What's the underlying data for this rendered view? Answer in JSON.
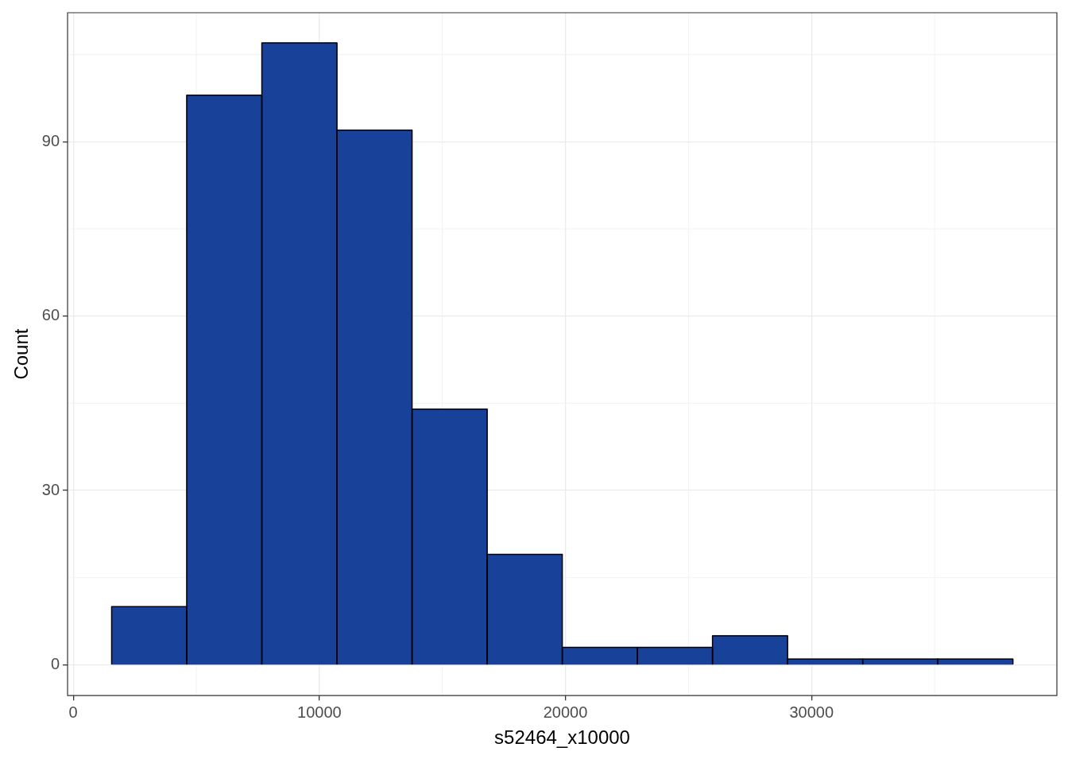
{
  "chart_data": {
    "type": "histogram",
    "xlabel": "s52464_x10000",
    "ylabel": "Count",
    "bins": [
      1560,
      4612,
      7664,
      10716,
      13768,
      16820,
      19872,
      22924,
      25976,
      29028,
      32080,
      35132,
      38184
    ],
    "values": [
      10,
      98,
      107,
      92,
      44,
      19,
      3,
      3,
      5,
      1,
      1,
      1
    ],
    "color": "#18429a",
    "xlim": [
      -230,
      39970
    ],
    "xticks": [
      0,
      10000,
      20000,
      30000
    ],
    "ylim": [
      -5.3,
      112.2
    ],
    "yticks": [
      0,
      30,
      60,
      90
    ],
    "grid": true,
    "legend": false
  }
}
